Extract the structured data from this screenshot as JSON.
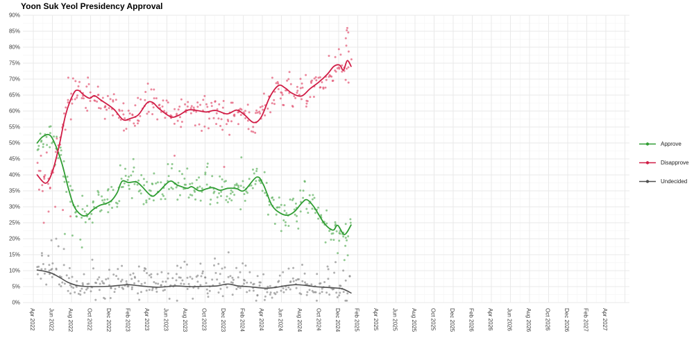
{
  "chart_data": {
    "type": "scatter",
    "title": "Yoon Suk Yeol Presidency Approval",
    "xlabel": "",
    "ylabel": "",
    "grid": {
      "major_color": "#e9e9e9",
      "minor_color": "#f6f6f6",
      "background": "#ffffff"
    },
    "axis_text_color": "#3d3d3d",
    "x_axis": {
      "unit": "months since Apr 2022",
      "tick_step_months": 2,
      "minor_step_months": 1,
      "tick_labels": [
        "Apr 2022",
        "Jun 2022",
        "Aug 2022",
        "Oct 2022",
        "Dec 2022",
        "Feb 2023",
        "Apr 2023",
        "Jun 2023",
        "Aug 2023",
        "Oct 2023",
        "Dec 2023",
        "Feb 2024",
        "Apr 2024",
        "Jun 2024",
        "Aug 2024",
        "Oct 2024",
        "Dec 2024",
        "Feb 2025",
        "Apr 2025",
        "Jun 2025",
        "Aug 2025",
        "Oct 2025",
        "Dec 2025",
        "Feb 2026",
        "Apr 2026",
        "Jun 2026",
        "Aug 2026",
        "Oct 2026",
        "Dec 2026",
        "Feb 2027",
        "Apr 2027"
      ]
    },
    "y_axis": {
      "min": 0,
      "max": 90,
      "tick_step": 5,
      "minor_step": 2.5,
      "tick_suffix": "%",
      "tick_labels": [
        "0%",
        "5%",
        "10%",
        "15%",
        "20%",
        "25%",
        "30%",
        "35%",
        "40%",
        "45%",
        "50%",
        "55%",
        "60%",
        "65%",
        "70%",
        "75%",
        "80%",
        "85%",
        "90%"
      ]
    },
    "legend": {
      "position": "right",
      "items": [
        "Approve",
        "Disapprove",
        "Undecided"
      ]
    },
    "scatter_style": {
      "radius": 1.5,
      "opacity": 0.7,
      "seed": 11
    },
    "series": [
      {
        "name": "Approve",
        "point_color": "#62b362",
        "line_color": "#2f9d32",
        "scatter_sd": 2.7,
        "points_per_month": 9.5,
        "trend": [
          [
            0.4,
            50
          ],
          [
            1,
            52
          ],
          [
            1.7,
            52.5
          ],
          [
            2.3,
            49.5
          ],
          [
            3,
            43.5
          ],
          [
            3.7,
            35.5
          ],
          [
            4.3,
            30
          ],
          [
            5,
            27.5
          ],
          [
            5.6,
            27.3
          ],
          [
            6.2,
            29
          ],
          [
            7,
            30.5
          ],
          [
            7.6,
            31
          ],
          [
            8.2,
            32
          ],
          [
            8.8,
            34.5
          ],
          [
            9.3,
            38
          ],
          [
            10,
            37.6
          ],
          [
            10.8,
            37.8
          ],
          [
            11.4,
            36.3
          ],
          [
            12.4,
            33.4
          ],
          [
            13.1,
            34.6
          ],
          [
            14.3,
            38
          ],
          [
            15.1,
            36.8
          ],
          [
            16.1,
            35.8
          ],
          [
            16.6,
            36.3
          ],
          [
            17.4,
            35
          ],
          [
            18.1,
            35.6
          ],
          [
            18.8,
            36
          ],
          [
            19.6,
            35.2
          ],
          [
            20.4,
            35.8
          ],
          [
            21.3,
            35.7
          ],
          [
            22.1,
            35.1
          ],
          [
            23.4,
            39.3
          ],
          [
            24.1,
            37
          ],
          [
            25,
            30.5
          ],
          [
            25.9,
            28
          ],
          [
            26.7,
            27.4
          ],
          [
            27.4,
            28.6
          ],
          [
            28.2,
            31.4
          ],
          [
            28.7,
            32.2
          ],
          [
            29.4,
            30
          ],
          [
            30.5,
            24.8
          ],
          [
            31.4,
            22.7
          ],
          [
            31.9,
            24.2
          ],
          [
            32.6,
            21.3
          ],
          [
            33.3,
            24.3
          ]
        ],
        "outliers": [
          [
            3.3,
            21.5
          ],
          [
            4.1,
            21
          ],
          [
            21.8,
            45.5
          ],
          [
            31.9,
            15.5
          ],
          [
            32.6,
            13.3
          ],
          [
            32.95,
            14.8
          ]
        ]
      },
      {
        "name": "Disapprove",
        "point_color": "#e25573",
        "line_color": "#d01c45",
        "scatter_sd": 2.7,
        "points_per_month": 9.5,
        "trend": [
          [
            0.4,
            40
          ],
          [
            1.3,
            37.4
          ],
          [
            2,
            41
          ],
          [
            2.7,
            49
          ],
          [
            3.4,
            59
          ],
          [
            4.2,
            65.4
          ],
          [
            4.7,
            66.5
          ],
          [
            5.3,
            65
          ],
          [
            5.9,
            64
          ],
          [
            6.4,
            64.8
          ],
          [
            7.1,
            63.4
          ],
          [
            7.8,
            62
          ],
          [
            8.5,
            60.4
          ],
          [
            9.4,
            57.3
          ],
          [
            10.1,
            57.6
          ],
          [
            11,
            58.8
          ],
          [
            11.9,
            62.5
          ],
          [
            12.5,
            62.7
          ],
          [
            13.2,
            60.7
          ],
          [
            14.4,
            58.2
          ],
          [
            15.2,
            58.6
          ],
          [
            16.2,
            60.3
          ],
          [
            17.1,
            60.2
          ],
          [
            18.1,
            59.7
          ],
          [
            19.1,
            60.2
          ],
          [
            20.3,
            59.1
          ],
          [
            21.3,
            60.3
          ],
          [
            22.1,
            58.9
          ],
          [
            23.1,
            56.4
          ],
          [
            23.9,
            58.2
          ],
          [
            24.8,
            64.5
          ],
          [
            25.7,
            68
          ],
          [
            26.4,
            67.2
          ],
          [
            27.1,
            65.6
          ],
          [
            28.1,
            64.7
          ],
          [
            29,
            67
          ],
          [
            29.9,
            69
          ],
          [
            30.8,
            71.5
          ],
          [
            31.5,
            74
          ],
          [
            32.1,
            74.4
          ],
          [
            32.5,
            72.8
          ],
          [
            32.9,
            75.8
          ],
          [
            33.3,
            74
          ]
        ],
        "outliers": [
          [
            0.8,
            46
          ],
          [
            1.4,
            47
          ],
          [
            1.1,
            25
          ],
          [
            1.6,
            28.5
          ],
          [
            2.3,
            30
          ],
          [
            3.1,
            29
          ],
          [
            3.9,
            27
          ],
          [
            14.8,
            46
          ],
          [
            20,
            42.5
          ],
          [
            32.75,
            82.8
          ],
          [
            32.8,
            80.5
          ],
          [
            32.85,
            85.3
          ],
          [
            32.9,
            86
          ],
          [
            33,
            84.6
          ]
        ]
      },
      {
        "name": "Undecided",
        "point_color": "#8d8d8d",
        "line_color": "#4f4f4f",
        "scatter_sd": 1.9,
        "points_per_month": 9.5,
        "tail_chance": 0.17,
        "tail_add": 3.5,
        "tail_span": 3,
        "trend": [
          [
            0.4,
            10.2
          ],
          [
            1.2,
            9.8
          ],
          [
            2,
            9.1
          ],
          [
            2.8,
            7.8
          ],
          [
            3.6,
            6.4
          ],
          [
            4.4,
            5.5
          ],
          [
            5.2,
            5.1
          ],
          [
            6.5,
            5
          ],
          [
            8,
            5.1
          ],
          [
            9,
            5.4
          ],
          [
            10,
            5.6
          ],
          [
            11,
            5.3
          ],
          [
            12,
            5
          ],
          [
            13,
            4.8
          ],
          [
            14,
            5
          ],
          [
            15,
            5.2
          ],
          [
            16.5,
            5
          ],
          [
            18,
            5.1
          ],
          [
            19.2,
            5.2
          ],
          [
            20.4,
            5.8
          ],
          [
            21.5,
            5.2
          ],
          [
            22.5,
            5
          ],
          [
            23.5,
            4.7
          ],
          [
            24.5,
            4.5
          ],
          [
            25.5,
            4.8
          ],
          [
            26.5,
            5.3
          ],
          [
            27.5,
            5.6
          ],
          [
            28.5,
            5.4
          ],
          [
            29.5,
            5
          ],
          [
            30.5,
            4.8
          ],
          [
            31.5,
            4.6
          ],
          [
            32.4,
            4.3
          ],
          [
            33.3,
            3
          ]
        ],
        "outliers": [
          [
            1.9,
            19.5
          ],
          [
            2.4,
            20
          ],
          [
            0.9,
            15.5
          ]
        ]
      }
    ]
  }
}
